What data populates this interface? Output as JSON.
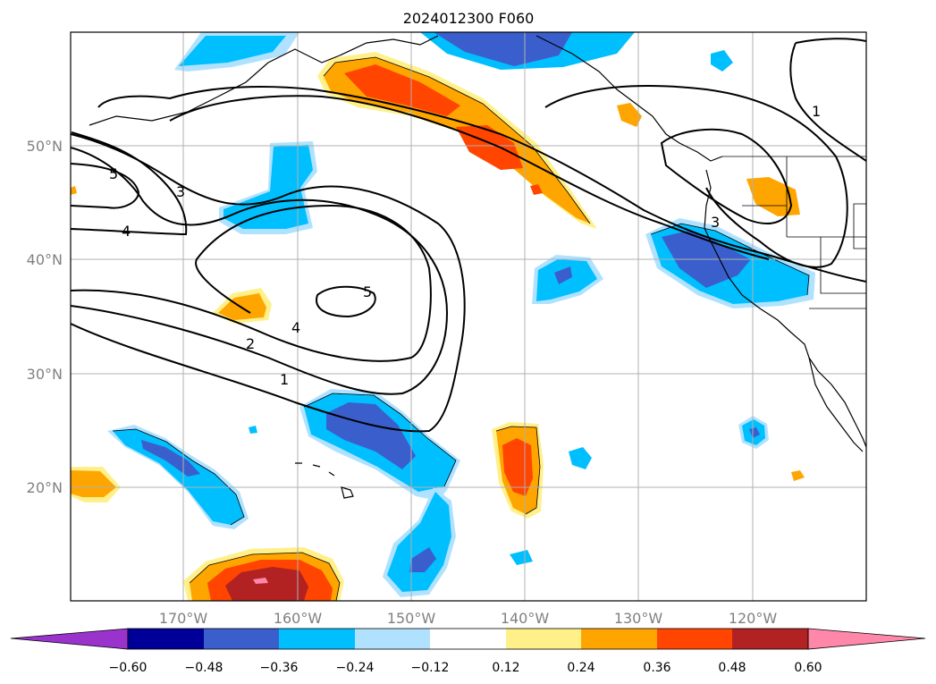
{
  "title": "2024012300 F060",
  "map": {
    "lon_range": [
      -180,
      -110
    ],
    "lat_range": [
      10,
      60
    ],
    "lon_ticks": [
      {
        "lon": -170,
        "label": "170°W"
      },
      {
        "lon": -160,
        "label": "160°W"
      },
      {
        "lon": -150,
        "label": "150°W"
      },
      {
        "lon": -140,
        "label": "140°W"
      },
      {
        "lon": -130,
        "label": "130°W"
      },
      {
        "lon": -120,
        "label": "120°W"
      }
    ],
    "lat_ticks": [
      {
        "lat": 20,
        "label": "20°N"
      },
      {
        "lat": 30,
        "label": "30°N"
      },
      {
        "lat": 40,
        "label": "40°N"
      },
      {
        "lat": 50,
        "label": "50°N"
      }
    ],
    "grid": true,
    "contour_labels": [
      "5",
      "3",
      "4",
      "2",
      "1",
      "5",
      "4",
      "1",
      "3"
    ]
  },
  "colorbar": {
    "extend": "both",
    "colors": [
      "#9933cc",
      "#000099",
      "#3a5fcd",
      "#00bfff",
      "#b0e2ff",
      "#ffffff",
      "#fff08a",
      "#ffa500",
      "#ff4500",
      "#b22222",
      "#ff88aa"
    ],
    "tick_labels": [
      "−0.60",
      "−0.48",
      "−0.36",
      "−0.24",
      "−0.12",
      "0.12",
      "0.24",
      "0.36",
      "0.48",
      "0.60"
    ]
  }
}
